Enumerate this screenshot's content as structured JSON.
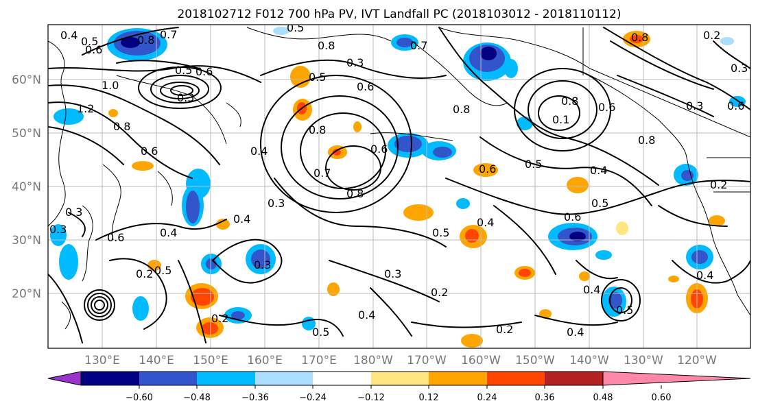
{
  "title": "2018102712 F012 700 hPa PV, IVT Landfall PC (2018103012 - 2018110112)",
  "lat_labels": [
    "60°N",
    "50°N",
    "40°N",
    "30°N",
    "20°N"
  ],
  "lon_labels": [
    "130°E",
    "140°E",
    "150°E",
    "160°E",
    "170°E",
    "180°W",
    "170°W",
    "160°W",
    "150°W",
    "140°W",
    "130°W",
    "120°W"
  ],
  "colorbar": {
    "ticks": [
      "−0.60",
      "−0.48",
      "−0.36",
      "−0.24",
      "−0.12",
      "0.12",
      "0.24",
      "0.36",
      "0.48",
      "0.60"
    ],
    "colors": [
      "#9933cc",
      "#000080",
      "#3355cc",
      "#00bbff",
      "#aaddff",
      "#ffffff",
      "#ffe680",
      "#ffa500",
      "#ff4500",
      "#b22222",
      "#ff88aa"
    ]
  },
  "contour_labels": [
    "0.4",
    "0.5",
    "0.6",
    "0.8",
    "0.7",
    "0.5",
    "0.6",
    "0.3",
    "1.0",
    "1.2",
    "0.8",
    "0.6",
    "0.4",
    "0.3",
    "0.4",
    "0.5",
    "0.6",
    "0.7",
    "0.8",
    "0.8",
    "0.6",
    "0.3",
    "0.5",
    "0.4",
    "0.6",
    "0.8",
    "0.8",
    "0.1",
    "0.8",
    "0.6",
    "0.3",
    "0.6",
    "0.4",
    "0.5",
    "0.6",
    "0.5",
    "0.4",
    "0.5",
    "0.4",
    "0.2",
    "0.3",
    "0.4",
    "0.3",
    "0.5",
    "0.2",
    "0.2",
    "0.5",
    "0.4",
    "0.2",
    "0.2",
    "0.4",
    "0.3",
    "0.3",
    "0.6",
    "0.7",
    "0.8",
    "0.5",
    "0.8",
    "0.2",
    "0.3"
  ]
}
